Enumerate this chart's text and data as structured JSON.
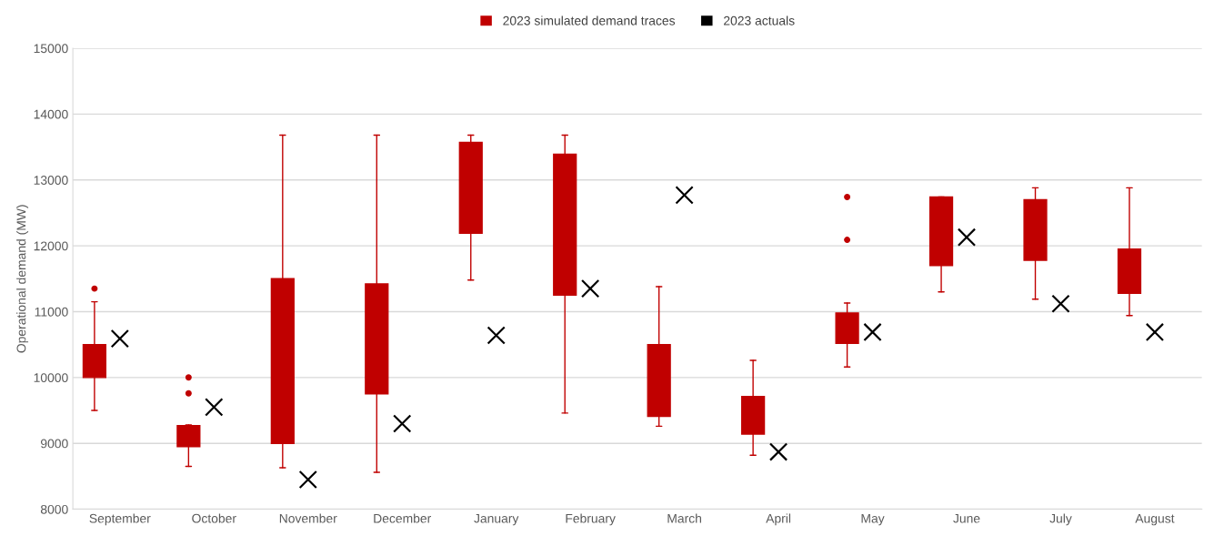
{
  "chart_data": {
    "type": "box",
    "ylabel": "Operational demand (MW)",
    "categories": [
      "September",
      "October",
      "November",
      "December",
      "January",
      "February",
      "March",
      "April",
      "May",
      "June",
      "July",
      "August"
    ],
    "series": [
      {
        "name": "2023 simulated demand traces",
        "type": "box",
        "color": "#c00000",
        "boxes": [
          {
            "low": 9500,
            "q1": 10000,
            "q3": 10500,
            "high": 11150,
            "outliers": [
              11350
            ]
          },
          {
            "low": 8650,
            "q1": 8950,
            "q3": 9270,
            "high": 9280,
            "outliers": [
              10000,
              9760
            ]
          },
          {
            "low": 8630,
            "q1": 9000,
            "q3": 11500,
            "high": 13680
          },
          {
            "low": 8560,
            "q1": 9750,
            "q3": 11420,
            "high": 13680
          },
          {
            "low": 11480,
            "q1": 12190,
            "q3": 13570,
            "high": 13680
          },
          {
            "low": 9460,
            "q1": 11250,
            "q3": 13390,
            "high": 13680
          },
          {
            "low": 9260,
            "q1": 9410,
            "q3": 10500,
            "high": 11380
          },
          {
            "low": 8820,
            "q1": 9140,
            "q3": 9710,
            "high": 10260
          },
          {
            "low": 10160,
            "q1": 10520,
            "q3": 10980,
            "high": 11130,
            "outliers": [
              12090,
              12740
            ]
          },
          {
            "low": 11300,
            "q1": 11700,
            "q3": 12740,
            "high": 12740
          },
          {
            "low": 11190,
            "q1": 11780,
            "q3": 12700,
            "high": 12880
          },
          {
            "low": 10940,
            "q1": 11280,
            "q3": 11950,
            "high": 12880
          }
        ]
      },
      {
        "name": "2023 actuals",
        "type": "scatter",
        "color": "#000000",
        "marker": "cross",
        "x": [
          "September",
          "October",
          "November",
          "December",
          "January",
          "February",
          "March",
          "April",
          "May",
          "June",
          "July",
          "August"
        ],
        "values": [
          10590,
          9550,
          8450,
          9300,
          10640,
          11350,
          12770,
          8870,
          10690,
          12130,
          11120,
          10690
        ]
      }
    ],
    "ylim": [
      8000,
      15000
    ],
    "yticks": [
      8000,
      9000,
      10000,
      11000,
      12000,
      13000,
      14000,
      15000
    ],
    "grid": "y",
    "legend": "top"
  }
}
